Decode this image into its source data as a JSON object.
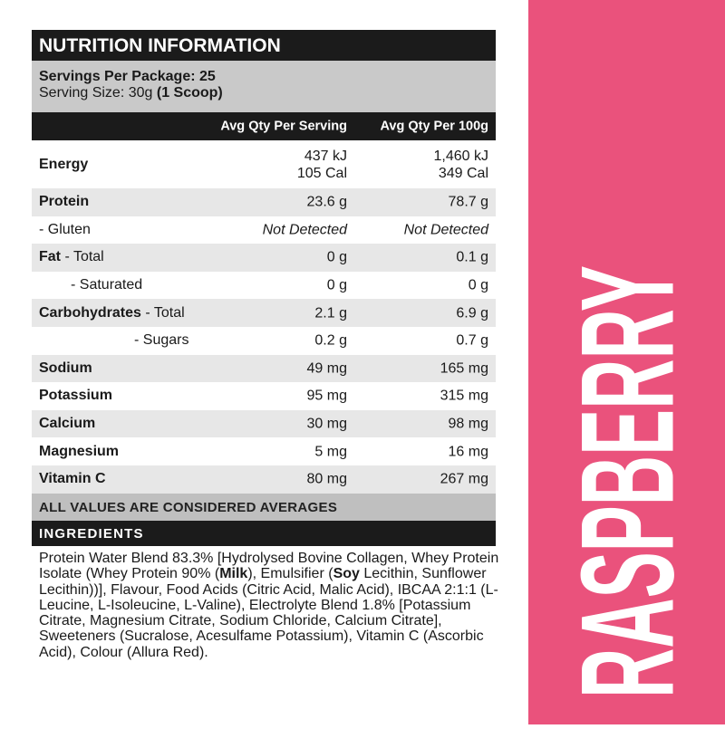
{
  "header": {
    "title": "NUTRITION INFORMATION",
    "servings": "Servings Per Package: 25",
    "serving_size": "Serving Size: 30g",
    "serving_size_bold": "(1 Scoop)"
  },
  "columns": [
    "Avg Qty Per Serving",
    "Avg Qty Per 100g"
  ],
  "rows": [
    {
      "label": "Energy",
      "serving": [
        "437 kJ",
        "105 Cal"
      ],
      "per_100g": [
        "1,460 kJ",
        "349 Cal"
      ]
    },
    {
      "label": "Protein",
      "serving": "23.6 g",
      "per_100g": "78.7 g"
    },
    {
      "label": "- Gluten",
      "serving": "Not Detected",
      "per_100g": "Not Detected"
    },
    {
      "label": "Fat",
      "sublabel": "- Total",
      "serving": "0 g",
      "per_100g": "0.1 g"
    },
    {
      "label": "- Saturated",
      "serving": "0 g",
      "per_100g": "0 g"
    },
    {
      "label": "Carbohydrates",
      "sublabel": "- Total",
      "serving": "2.1 g",
      "per_100g": "6.9 g"
    },
    {
      "label": "- Sugars",
      "serving": "0.2 g",
      "per_100g": "0.7 g"
    },
    {
      "label": "Sodium",
      "serving": "49 mg",
      "per_100g": "165 mg"
    },
    {
      "label": "Potassium",
      "serving": "95 mg",
      "per_100g": "315 mg"
    },
    {
      "label": "Calcium",
      "serving": "30 mg",
      "per_100g": "98 mg"
    },
    {
      "label": "Magnesium",
      "serving": "5 mg",
      "per_100g": "16 mg"
    },
    {
      "label": "Vitamin C",
      "serving": "80 mg",
      "per_100g": "267 mg"
    }
  ],
  "footnote": "ALL VALUES ARE CONSIDERED AVERAGES",
  "ingredients": {
    "title": "INGREDIENTS",
    "text": [
      "Protein Water Blend 83.3% [Hydrolysed Bovine Collagen, Whey Protein Isolate (Whey Protein 90% (",
      "Milk",
      "), Emulsifier (",
      "Soy",
      " Lecithin, Sunflower Lecithin))], Flavour, Food Acids (Citric Acid, Malic Acid), IBCAA 2:1:1 (L-Leucine, L-Isoleucine, L-Valine), Electrolyte Blend 1.8% [Potassium Citrate, Magnesium Citrate, Sodium Chloride, Calcium Citrate], Sweeteners (Sucralose, Acesulfame Potassium), Vitamin C (Ascorbic Acid), Colour (Allura Red)."
    ]
  },
  "flavour": "RASPBERRY"
}
